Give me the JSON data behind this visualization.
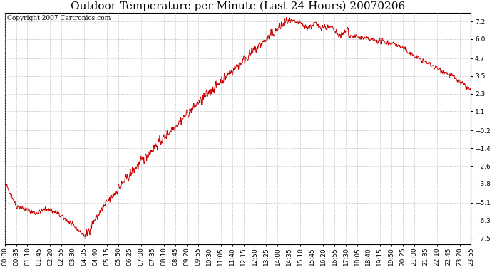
{
  "title": "Outdoor Temperature per Minute (Last 24 Hours) 20070206",
  "copyright_text": "Copyright 2007 Cartronics.com",
  "line_color": "#cc0000",
  "background_color": "#ffffff",
  "plot_bg_color": "#ffffff",
  "grid_color": "#bbbbbb",
  "yticks": [
    7.2,
    6.0,
    4.7,
    3.5,
    2.3,
    1.1,
    -0.2,
    -1.4,
    -2.6,
    -3.8,
    -5.1,
    -6.3,
    -7.5
  ],
  "ylim": [
    -7.9,
    7.8
  ],
  "xtick_labels": [
    "00:00",
    "00:35",
    "01:10",
    "01:45",
    "02:20",
    "02:55",
    "03:30",
    "04:05",
    "04:40",
    "05:15",
    "05:50",
    "06:25",
    "07:00",
    "07:35",
    "08:10",
    "08:45",
    "09:20",
    "09:55",
    "10:30",
    "11:05",
    "11:40",
    "12:15",
    "12:50",
    "13:25",
    "14:00",
    "14:35",
    "15:10",
    "15:45",
    "16:20",
    "16:55",
    "17:30",
    "18:05",
    "18:40",
    "19:15",
    "19:50",
    "20:25",
    "21:00",
    "21:35",
    "22:10",
    "22:45",
    "23:20",
    "23:55"
  ],
  "title_fontsize": 11,
  "tick_fontsize": 6.5,
  "copyright_fontsize": 6.5,
  "figsize": [
    6.9,
    3.75
  ],
  "dpi": 100
}
